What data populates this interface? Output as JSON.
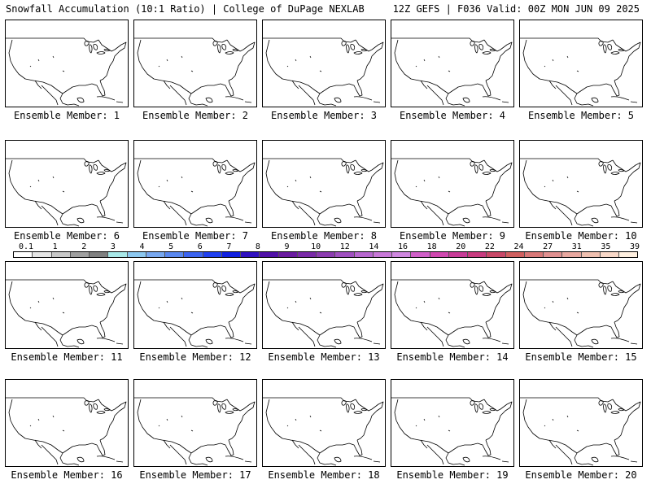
{
  "header": {
    "left": "Snowfall Accumulation (10:1 Ratio) | College of DuPage NEXLAB",
    "right": "12Z GEFS | F036 Valid: 00Z MON JUN 09 2025"
  },
  "panels": [
    {
      "label": "Ensemble Member: 1"
    },
    {
      "label": "Ensemble Member: 2"
    },
    {
      "label": "Ensemble Member: 3"
    },
    {
      "label": "Ensemble Member: 4"
    },
    {
      "label": "Ensemble Member: 5"
    },
    {
      "label": "Ensemble Member: 6"
    },
    {
      "label": "Ensemble Member: 7"
    },
    {
      "label": "Ensemble Member: 8"
    },
    {
      "label": "Ensemble Member: 9"
    },
    {
      "label": "Ensemble Member: 10"
    },
    {
      "label": "Ensemble Member: 11"
    },
    {
      "label": "Ensemble Member: 12"
    },
    {
      "label": "Ensemble Member: 13"
    },
    {
      "label": "Ensemble Member: 14"
    },
    {
      "label": "Ensemble Member: 15"
    },
    {
      "label": "Ensemble Member: 16"
    },
    {
      "label": "Ensemble Member: 17"
    },
    {
      "label": "Ensemble Member: 18"
    },
    {
      "label": "Ensemble Member: 19"
    },
    {
      "label": "Ensemble Member: 20"
    }
  ],
  "colorbar": {
    "labels": [
      "0.1",
      "1",
      "2",
      "3",
      "4",
      "5",
      "6",
      "7",
      "8",
      "9",
      "10",
      "12",
      "14",
      "16",
      "18",
      "20",
      "22",
      "24",
      "27",
      "31",
      "35",
      "39"
    ],
    "colors": [
      "#ffffff",
      "#e6e6e6",
      "#c8c8c8",
      "#a0a0a0",
      "#808080",
      "#a8e8e8",
      "#8cc8f0",
      "#78a8f0",
      "#5a88f0",
      "#3c64f0",
      "#2040f0",
      "#1020e0",
      "#3010c0",
      "#5010a8",
      "#6a1aa0",
      "#7a2aa8",
      "#8c3cb0",
      "#a050c0",
      "#b868d0",
      "#c878d8",
      "#d088e0",
      "#d060c8",
      "#d048b0",
      "#c83c98",
      "#c83c80",
      "#c84868",
      "#d06060",
      "#d87878",
      "#e09090",
      "#e8a8a0",
      "#f0c0b0",
      "#f8d8c8",
      "#fff0e0"
    ]
  }
}
